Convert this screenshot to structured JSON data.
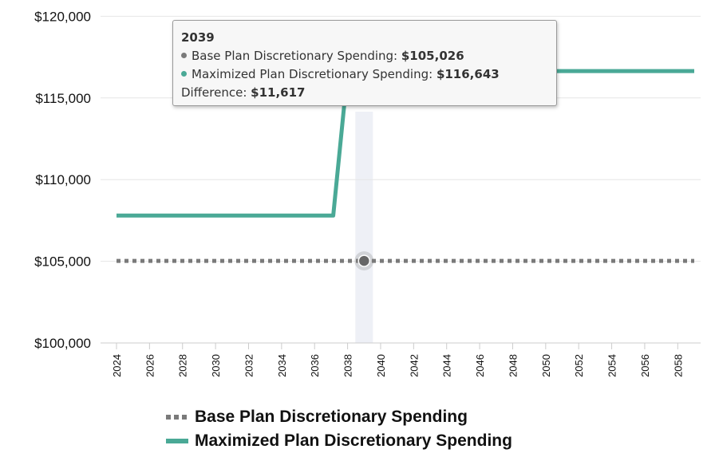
{
  "chart_data": {
    "type": "line",
    "x": [
      2024,
      2025,
      2026,
      2027,
      2028,
      2029,
      2030,
      2031,
      2032,
      2033,
      2034,
      2035,
      2036,
      2037,
      2038,
      2039,
      2040,
      2041,
      2042,
      2043,
      2044,
      2045,
      2046,
      2047,
      2048,
      2049,
      2050,
      2051,
      2052,
      2053,
      2054,
      2055,
      2056,
      2057,
      2058,
      2059
    ],
    "x_tick_labels": [
      "2024",
      "2026",
      "2028",
      "2030",
      "2032",
      "2034",
      "2036",
      "2038",
      "2040",
      "2042",
      "2044",
      "2046",
      "2048",
      "2050",
      "2052",
      "2054",
      "2056",
      "2058"
    ],
    "y_tick_labels": [
      "$100,000",
      "$105,000",
      "$110,000",
      "$115,000",
      "$120,000"
    ],
    "y_ticks": [
      100000,
      105000,
      110000,
      115000,
      120000
    ],
    "ylim": [
      100000,
      120800
    ],
    "xlim": [
      2024,
      2059
    ],
    "grid": "horizontal",
    "legend_position": "bottom",
    "series": [
      {
        "name": "Base Plan Discretionary Spending",
        "color": "#7a7a7a",
        "style": "dotted",
        "values": [
          105026,
          105026,
          105026,
          105026,
          105026,
          105026,
          105026,
          105026,
          105026,
          105026,
          105026,
          105026,
          105026,
          105026,
          105026,
          105026,
          105026,
          105026,
          105026,
          105026,
          105026,
          105026,
          105026,
          105026,
          105026,
          105026,
          105026,
          105026,
          105026,
          105026,
          105026,
          105026,
          105026,
          105026,
          105026,
          105026
        ]
      },
      {
        "name": "Maximized Plan Discretionary Spending",
        "color": "#4aa996",
        "style": "solid",
        "values": [
          107800,
          107800,
          107800,
          107800,
          107800,
          107800,
          107800,
          107800,
          107800,
          107800,
          107800,
          107800,
          107800,
          107800,
          116643,
          116643,
          116643,
          116643,
          116643,
          116643,
          116643,
          116643,
          116643,
          116643,
          116643,
          116643,
          116643,
          116643,
          116643,
          116643,
          116643,
          116643,
          116643,
          116643,
          116643,
          116643
        ]
      }
    ],
    "hover": {
      "year": 2039,
      "title": "2039",
      "rows": [
        {
          "label": "Base Plan Discretionary Spending: ",
          "value": "$105,026",
          "color": "#7a7a7a"
        },
        {
          "label": "Maximized Plan Discretionary Spending: ",
          "value": "$116,643",
          "color": "#4aa996"
        }
      ],
      "difference_label": "Difference: ",
      "difference_value": "$11,617"
    }
  }
}
